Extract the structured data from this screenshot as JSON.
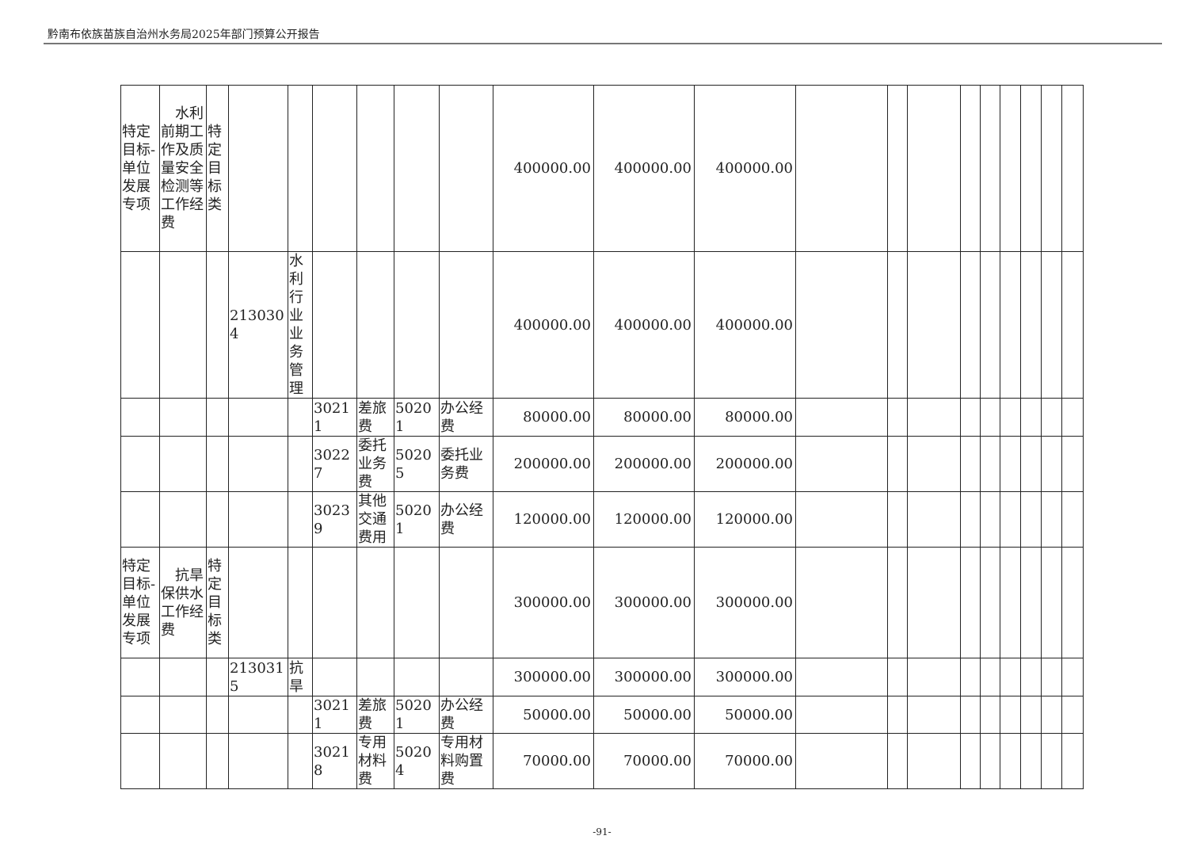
{
  "header": {
    "title": "黔南布依族苗族自治州水务局2025年部门预算公开报告"
  },
  "footer": {
    "page_number": "-91-"
  },
  "table": {
    "column_count": 21,
    "rows": [
      [
        "特定目标-单位发展专项",
        "　水利前期工作及质量安全检测等工作经费",
        "特定目标类",
        "",
        "",
        "",
        "",
        "",
        "",
        "400000.00",
        "400000.00",
        "400000.00",
        "",
        "",
        "",
        "",
        "",
        "",
        "",
        "",
        ""
      ],
      [
        "",
        "",
        "",
        "2130304",
        "水利行业业务管理",
        "",
        "",
        "",
        "",
        "400000.00",
        "400000.00",
        "400000.00",
        "",
        "",
        "",
        "",
        "",
        "",
        "",
        "",
        ""
      ],
      [
        "",
        "",
        "",
        "",
        "",
        "30211",
        "差旅费",
        "50201",
        "办公经费",
        "80000.00",
        "80000.00",
        "80000.00",
        "",
        "",
        "",
        "",
        "",
        "",
        "",
        "",
        ""
      ],
      [
        "",
        "",
        "",
        "",
        "",
        "30227",
        "委托业务费",
        "50205",
        "委托业务费",
        "200000.00",
        "200000.00",
        "200000.00",
        "",
        "",
        "",
        "",
        "",
        "",
        "",
        "",
        ""
      ],
      [
        "",
        "",
        "",
        "",
        "",
        "30239",
        "其他交通费用",
        "50201",
        "办公经费",
        "120000.00",
        "120000.00",
        "120000.00",
        "",
        "",
        "",
        "",
        "",
        "",
        "",
        "",
        ""
      ],
      [
        "特定目标-单位发展专项",
        "　抗旱保供水工作经费",
        "特定目标类",
        "",
        "",
        "",
        "",
        "",
        "",
        "300000.00",
        "300000.00",
        "300000.00",
        "",
        "",
        "",
        "",
        "",
        "",
        "",
        "",
        ""
      ],
      [
        "",
        "",
        "",
        "2130315",
        "抗旱",
        "",
        "",
        "",
        "",
        "300000.00",
        "300000.00",
        "300000.00",
        "",
        "",
        "",
        "",
        "",
        "",
        "",
        "",
        ""
      ],
      [
        "",
        "",
        "",
        "",
        "",
        "30211",
        "差旅费",
        "50201",
        "办公经费",
        "50000.00",
        "50000.00",
        "50000.00",
        "",
        "",
        "",
        "",
        "",
        "",
        "",
        "",
        ""
      ],
      [
        "",
        "",
        "",
        "",
        "",
        "30218",
        "专用材料费",
        "50204",
        "专用材料购置费",
        "70000.00",
        "70000.00",
        "70000.00",
        "",
        "",
        "",
        "",
        "",
        "",
        "",
        "",
        ""
      ]
    ]
  }
}
